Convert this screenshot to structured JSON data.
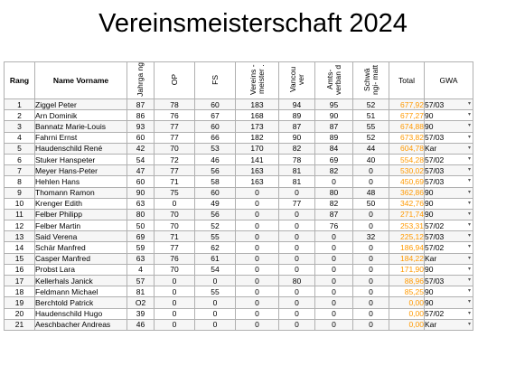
{
  "title": "Vereinsmeisterschaft 2024",
  "headers": {
    "rang": "Rang",
    "name": "Name  Vorname",
    "jahrgang": "Jahrga ng",
    "op": "OP",
    "fs": "FS",
    "vereinsmeister": "Vereins - meister .",
    "vancouver": "Vancou ver",
    "amtsverband": "Amts- verban d",
    "schwingimatt": "Schwä ngi- matt",
    "total": "Total",
    "gwa": "GWA"
  },
  "rows": [
    {
      "rang": "1",
      "name": "Ziggel Peter",
      "jg": "87",
      "op": "78",
      "fs": "60",
      "vm": "183",
      "van": "94",
      "amt": "95",
      "sch": "52",
      "total": "677,92",
      "gwa": "57/03"
    },
    {
      "rang": "2",
      "name": "Arn Dominik",
      "jg": "86",
      "op": "76",
      "fs": "67",
      "vm": "168",
      "van": "89",
      "amt": "90",
      "sch": "51",
      "total": "677,27",
      "gwa": "90"
    },
    {
      "rang": "3",
      "name": "Bannatz Marie-Louis",
      "jg": "93",
      "op": "77",
      "fs": "60",
      "vm": "173",
      "van": "87",
      "amt": "87",
      "sch": "55",
      "total": "674,88",
      "gwa": "90"
    },
    {
      "rang": "4",
      "name": "Fahrni Ernst",
      "jg": "60",
      "op": "77",
      "fs": "66",
      "vm": "182",
      "van": "90",
      "amt": "89",
      "sch": "52",
      "total": "673,82",
      "gwa": "57/03"
    },
    {
      "rang": "5",
      "name": "Haudenschild René",
      "jg": "42",
      "op": "70",
      "fs": "53",
      "vm": "170",
      "van": "82",
      "amt": "84",
      "sch": "44",
      "total": "604,78",
      "gwa": "Kar"
    },
    {
      "rang": "6",
      "name": "Stuker Hanspeter",
      "jg": "54",
      "op": "72",
      "fs": "46",
      "vm": "141",
      "van": "78",
      "amt": "69",
      "sch": "40",
      "total": "554,28",
      "gwa": "57/02"
    },
    {
      "rang": "7",
      "name": "Meyer Hans-Peter",
      "jg": "47",
      "op": "77",
      "fs": "56",
      "vm": "163",
      "van": "81",
      "amt": "82",
      "sch": "0",
      "total": "530,02",
      "gwa": "57/03"
    },
    {
      "rang": "8",
      "name": "Hehlen Hans",
      "jg": "60",
      "op": "71",
      "fs": "58",
      "vm": "163",
      "van": "81",
      "amt": "0",
      "sch": "0",
      "total": "450,69",
      "gwa": "57/03"
    },
    {
      "rang": "9",
      "name": "Thomann Ramon",
      "jg": "90",
      "op": "75",
      "fs": "60",
      "vm": "0",
      "van": "0",
      "amt": "80",
      "sch": "48",
      "total": "362,86",
      "gwa": "90"
    },
    {
      "rang": "10",
      "name": "Krenger Edith",
      "jg": "63",
      "op": "0",
      "fs": "49",
      "vm": "0",
      "van": "77",
      "amt": "82",
      "sch": "50",
      "total": "342,76",
      "gwa": "90"
    },
    {
      "rang": "11",
      "name": "Felber Philipp",
      "jg": "80",
      "op": "70",
      "fs": "56",
      "vm": "0",
      "van": "0",
      "amt": "87",
      "sch": "0",
      "total": "271,74",
      "gwa": "90"
    },
    {
      "rang": "12",
      "name": "Felber Martin",
      "jg": "50",
      "op": "70",
      "fs": "52",
      "vm": "0",
      "van": "0",
      "amt": "76",
      "sch": "0",
      "total": "253,31",
      "gwa": "57/02"
    },
    {
      "rang": "13",
      "name": "Said Verena",
      "jg": "69",
      "op": "71",
      "fs": "55",
      "vm": "0",
      "van": "0",
      "amt": "0",
      "sch": "32",
      "total": "225,12",
      "gwa": "57/03"
    },
    {
      "rang": "14",
      "name": "Schär Manfred",
      "jg": "59",
      "op": "77",
      "fs": "62",
      "vm": "0",
      "van": "0",
      "amt": "0",
      "sch": "0",
      "total": "186,94",
      "gwa": "57/02"
    },
    {
      "rang": "15",
      "name": "Casper Manfred",
      "jg": "63",
      "op": "76",
      "fs": "61",
      "vm": "0",
      "van": "0",
      "amt": "0",
      "sch": "0",
      "total": "184,22",
      "gwa": "Kar"
    },
    {
      "rang": "16",
      "name": "Probst Lara",
      "jg": "4",
      "op": "70",
      "fs": "54",
      "vm": "0",
      "van": "0",
      "amt": "0",
      "sch": "0",
      "total": "171,90",
      "gwa": "90"
    },
    {
      "rang": "17",
      "name": "Kellerhals Janick",
      "jg": "57",
      "op": "0",
      "fs": "0",
      "vm": "0",
      "van": "80",
      "amt": "0",
      "sch": "0",
      "total": "88,96",
      "gwa": "57/03"
    },
    {
      "rang": "18",
      "name": "Feldmann Michael",
      "jg": "81",
      "op": "0",
      "fs": "55",
      "vm": "0",
      "van": "0",
      "amt": "0",
      "sch": "0",
      "total": "85,25",
      "gwa": "90"
    },
    {
      "rang": "19",
      "name": "Berchtold Patrick",
      "jg": "O2",
      "op": "0",
      "fs": "0",
      "vm": "0",
      "van": "0",
      "amt": "0",
      "sch": "0",
      "total": "0,00",
      "gwa": "90"
    },
    {
      "rang": "20",
      "name": "Haudenschild Hugo",
      "jg": "39",
      "op": "0",
      "fs": "0",
      "vm": "0",
      "van": "0",
      "amt": "0",
      "sch": "0",
      "total": "0,00",
      "gwa": "57/02"
    },
    {
      "rang": "21",
      "name": "Aeschbacher Andreas",
      "jg": "46",
      "op": "0",
      "fs": "0",
      "vm": "0",
      "van": "0",
      "amt": "0",
      "sch": "0",
      "total": "0,00",
      "gwa": "Kar"
    }
  ],
  "colors": {
    "total_text": "#ff9900",
    "grid": "#b0b0b0",
    "row_shade": "#f6f6f6"
  },
  "icons": {
    "dropdown": "dropdown-arrow-icon"
  }
}
